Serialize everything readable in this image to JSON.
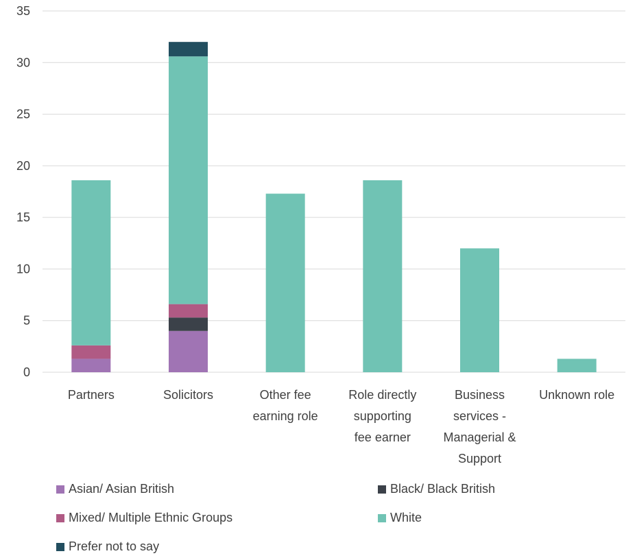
{
  "chart_data": {
    "type": "bar",
    "stacked": true,
    "categories": [
      [
        "Partners"
      ],
      [
        "Solicitors"
      ],
      [
        "Other fee",
        "earning role"
      ],
      [
        "Role directly",
        "supporting",
        "fee earner"
      ],
      [
        "Business",
        "services -",
        "Managerial &",
        "Support"
      ],
      [
        "Unknown role"
      ]
    ],
    "series": [
      {
        "name": "Asian/ Asian British",
        "color": "#A074B4",
        "values": [
          1.3,
          4.0,
          0,
          0,
          0,
          0
        ]
      },
      {
        "name": "Black/ Black British",
        "color": "#3B4149",
        "values": [
          0,
          1.3,
          0,
          0,
          0,
          0
        ]
      },
      {
        "name": "Mixed/ Multiple Ethnic Groups",
        "color": "#B05A84",
        "values": [
          1.3,
          1.3,
          0,
          0,
          0,
          0
        ]
      },
      {
        "name": "White",
        "color": "#70C3B4",
        "values": [
          16.0,
          24.0,
          17.3,
          18.6,
          12.0,
          1.3
        ]
      },
      {
        "name": "Prefer not to say",
        "color": "#224E5F",
        "values": [
          0,
          1.4,
          0,
          0,
          0,
          0
        ]
      }
    ],
    "ylim": [
      0,
      35
    ],
    "yticks": [
      "0",
      "5",
      "10",
      "15",
      "20",
      "25",
      "30",
      "35"
    ],
    "grid": true,
    "legend_position": "bottom"
  }
}
